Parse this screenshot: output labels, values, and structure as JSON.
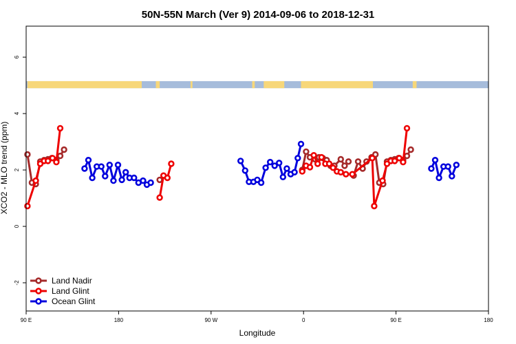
{
  "chart_data": {
    "type": "line",
    "title": "50N-55N March (Ver 9)   2014-09-06 to 2018-12-31",
    "xlabel": "Longitude",
    "ylabel": "XCO2 - MLO trend (ppm)",
    "xlim": [
      -90,
      270
    ],
    "ylim": [
      -3,
      7.1
    ],
    "x_ticks": [
      -90,
      -18,
      54,
      126,
      198,
      270
    ],
    "x_tick_labels": [
      "90 E",
      "180",
      "90 W",
      "0",
      "90 E",
      "180"
    ],
    "y_ticks": [
      -2,
      0,
      2,
      4,
      6
    ],
    "y_tick_labels": [
      "-2",
      "0",
      "2",
      "4",
      "6"
    ],
    "grid": false,
    "legend_position": "bottom-left",
    "land_mask_band": {
      "y_range": [
        4.9,
        5.15
      ],
      "land_color": "#f7d77a",
      "ocean_color": "#a6bcdb"
    },
    "series": [
      {
        "name": "Land Nadir",
        "color": "#a52a2a",
        "points": [
          [
            -89,
            2.55
          ],
          [
            -85.5,
            1.55
          ],
          [
            -82.5,
            1.5
          ],
          [
            -79,
            2.3
          ],
          [
            -76,
            2.35
          ],
          [
            -73,
            2.38
          ],
          [
            -70,
            2.42
          ],
          [
            -66.5,
            2.35
          ],
          [
            -63.5,
            2.5
          ],
          [
            -60.5,
            2.72
          ],
          null,
          [
            14,
            1.65
          ],
          null,
          [
            125,
            2.0
          ],
          [
            128,
            2.65
          ],
          [
            131,
            2.45
          ],
          [
            135,
            2.38
          ],
          [
            138,
            2.45
          ],
          [
            141,
            2.42
          ],
          [
            144,
            2.35
          ],
          [
            147,
            2.15
          ],
          [
            150,
            2.15
          ],
          [
            155,
            2.38
          ],
          [
            158,
            2.15
          ],
          [
            161,
            2.3
          ],
          null,
          [
            165,
            1.8
          ],
          [
            168.5,
            2.3
          ],
          [
            172,
            2.05
          ],
          [
            175,
            2.3
          ],
          [
            179,
            2.45
          ],
          [
            182,
            2.55
          ],
          [
            185,
            1.55
          ],
          [
            188,
            1.5
          ],
          [
            191,
            2.3
          ],
          [
            194,
            2.35
          ],
          [
            197,
            2.38
          ],
          [
            200,
            2.42
          ],
          [
            203.5,
            2.35
          ],
          [
            206.5,
            2.5
          ],
          [
            209.5,
            2.72
          ]
        ]
      },
      {
        "name": "Land Glint",
        "color": "#ee0000",
        "points": [
          [
            -89,
            0.72
          ],
          [
            -82.5,
            1.62
          ],
          [
            -79,
            2.22
          ],
          [
            -76,
            2.32
          ],
          [
            -73,
            2.32
          ],
          [
            -69.5,
            2.42
          ],
          [
            -66.5,
            2.28
          ],
          [
            -63.5,
            3.48
          ],
          null,
          [
            14,
            1.02
          ],
          [
            17,
            1.8
          ],
          [
            20,
            1.72
          ],
          [
            23,
            2.22
          ],
          null,
          [
            125,
            1.95
          ],
          [
            128,
            2.15
          ],
          [
            131,
            2.1
          ],
          [
            134,
            2.52
          ],
          [
            137,
            2.22
          ],
          [
            140,
            2.45
          ],
          [
            143,
            2.22
          ],
          [
            146,
            2.22
          ],
          [
            149,
            2.08
          ],
          [
            152,
            1.95
          ],
          [
            155,
            1.92
          ],
          null,
          [
            159,
            1.85
          ],
          null,
          [
            164,
            1.85
          ],
          [
            179.5,
            2.42
          ],
          [
            181,
            0.72
          ],
          [
            187.5,
            1.62
          ],
          [
            191,
            2.22
          ],
          [
            194,
            2.32
          ],
          [
            197,
            2.32
          ],
          [
            200.5,
            2.42
          ],
          [
            203.5,
            2.28
          ],
          [
            206.5,
            3.48
          ]
        ]
      },
      {
        "name": "Ocean Glint",
        "color": "#0000dd",
        "points": [
          [
            -44.5,
            2.05
          ],
          [
            -41.5,
            2.35
          ],
          [
            -38.5,
            1.72
          ],
          [
            -35,
            2.12
          ],
          [
            -31.5,
            2.12
          ],
          [
            -28.5,
            1.78
          ],
          [
            -25,
            2.18
          ],
          [
            -22,
            1.62
          ],
          [
            -18.5,
            2.18
          ],
          [
            -15.5,
            1.65
          ],
          [
            -12.5,
            1.92
          ],
          [
            -9.5,
            1.72
          ],
          [
            -6,
            1.72
          ],
          [
            -2.5,
            1.55
          ],
          [
            1,
            1.62
          ],
          [
            4,
            1.48
          ],
          [
            7,
            1.55
          ],
          null,
          [
            77,
            2.32
          ],
          [
            80.5,
            1.98
          ],
          [
            83.5,
            1.58
          ],
          [
            87,
            1.58
          ],
          [
            90,
            1.65
          ],
          [
            93,
            1.55
          ],
          [
            96.5,
            2.08
          ],
          [
            100,
            2.28
          ],
          [
            103.5,
            2.15
          ],
          [
            107,
            2.25
          ],
          [
            110,
            1.75
          ],
          [
            113,
            2.05
          ],
          [
            116,
            1.85
          ],
          [
            119,
            1.92
          ],
          [
            121.5,
            2.42
          ],
          [
            124,
            2.92
          ],
          null,
          [
            225.5,
            2.05
          ],
          [
            228.5,
            2.35
          ],
          [
            231.5,
            1.72
          ],
          [
            235,
            2.12
          ],
          [
            238.5,
            2.12
          ],
          [
            241.5,
            1.78
          ],
          [
            245,
            2.18
          ]
        ]
      }
    ]
  }
}
